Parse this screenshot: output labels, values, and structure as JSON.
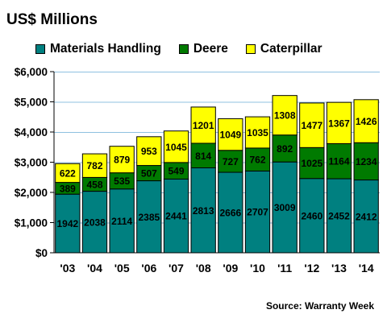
{
  "chart_data": {
    "type": "bar",
    "stacked": true,
    "title": "US$ Millions",
    "categories": [
      "'03",
      "'04",
      "'05",
      "'06",
      "'07",
      "'08",
      "'09",
      "'10",
      "'11",
      "'12",
      "'13",
      "'14"
    ],
    "series": [
      {
        "name": "Materials Handling",
        "color": "#008080",
        "values": [
          1942,
          2038,
          2114,
          2385,
          2441,
          2813,
          2666,
          2707,
          3009,
          2460,
          2452,
          2412
        ]
      },
      {
        "name": "Deere",
        "color": "#007a00",
        "values": [
          389,
          458,
          535,
          507,
          549,
          814,
          727,
          762,
          892,
          1025,
          1164,
          1234
        ]
      },
      {
        "name": "Caterpillar",
        "color": "#ffff00",
        "values": [
          622,
          782,
          879,
          953,
          1045,
          1201,
          1049,
          1035,
          1308,
          1477,
          1367,
          1426
        ]
      }
    ],
    "yticks": [
      "$0",
      "$1,000",
      "$2,000",
      "$3,000",
      "$4,000",
      "$5,000",
      "$6,000"
    ],
    "ylim": [
      0,
      6000
    ],
    "grid": true,
    "legend_position": "top",
    "source": "Source: Warranty Week"
  }
}
